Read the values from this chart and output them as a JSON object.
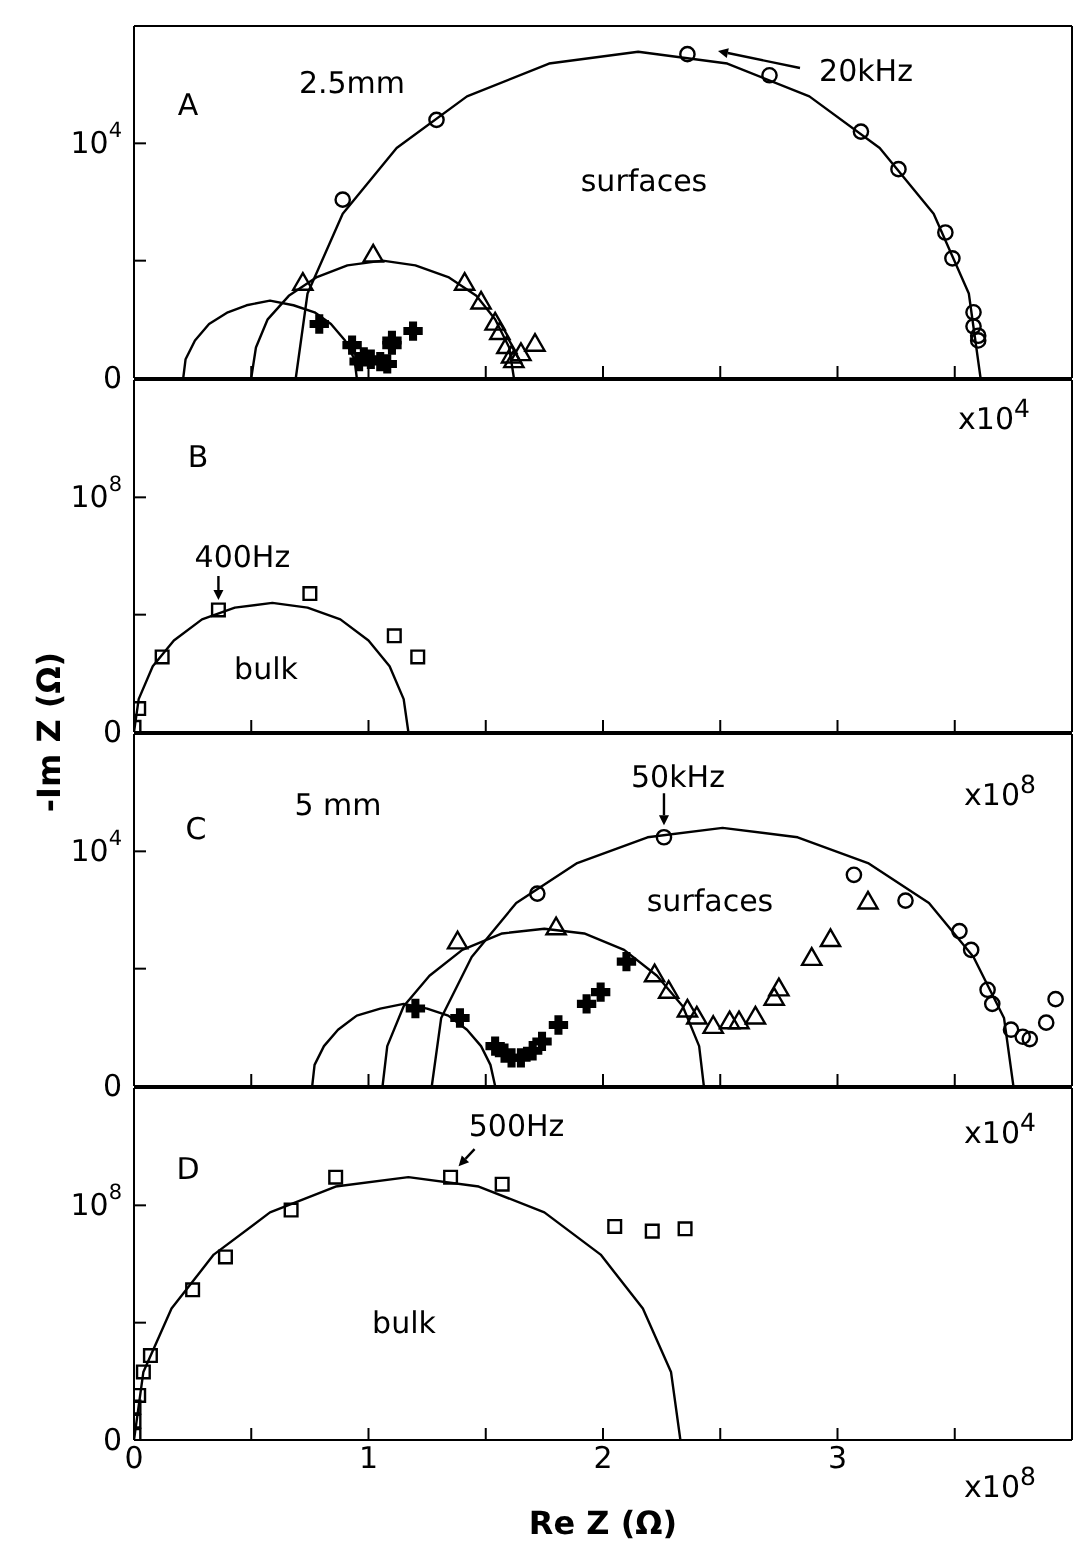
{
  "chart_data": [
    {
      "type": "scatter",
      "tick_labels": "y",
      "xlim": [
        0,
        4
      ],
      "ylim": [
        0,
        15000
      ],
      "xticks": [
        0,
        {
          "value": 0.5,
          "label": null
        },
        {
          "value": 1,
          "label": null
        },
        {
          "value": 1.5,
          "label": null
        },
        {
          "value": 2,
          "label": null
        },
        {
          "value": 2.5,
          "label": null
        },
        {
          "value": 3,
          "label": null
        },
        {
          "value": 3.5,
          "label": null
        }
      ],
      "yticks": [
        {
          "value": 0,
          "label": "0"
        },
        {
          "value": 5000,
          "label": null
        },
        {
          "value": 10000,
          "label": "10$^{4}$"
        }
      ],
      "series": [
        {
          "marker": "circle",
          "color": "#000000",
          "x": [
            0.89,
            1.29,
            2.36,
            2.71,
            3.1,
            3.26,
            3.46,
            3.49,
            3.58,
            3.58,
            3.6,
            3.6
          ],
          "values": [
            7600,
            11000,
            13800,
            12900,
            10500,
            8900,
            6200,
            5100,
            2800,
            2200,
            1800,
            1600
          ]
        },
        {
          "type": "line",
          "color": "#000000",
          "x": [
            3.61,
            3.56,
            3.41,
            3.18,
            2.88,
            2.53,
            2.15,
            1.77,
            1.42,
            1.12,
            0.89,
            0.74,
            0.69
          ],
          "values": [
            0,
            3600,
            7000,
            9800,
            12000,
            13400,
            13900,
            13400,
            12000,
            9800,
            7000,
            3600,
            0
          ]
        },
        {
          "marker": "triangle",
          "color": "#000000",
          "x": [
            0.72,
            1.02,
            1.41,
            1.48,
            1.54,
            1.56,
            1.59,
            1.61,
            1.62,
            1.65,
            1.71
          ],
          "values": [
            4000,
            5200,
            4000,
            3200,
            2300,
            1900,
            1300,
            900,
            700,
            1000,
            1400
          ]
        },
        {
          "type": "line",
          "color": "#000000",
          "x": [
            1.62,
            1.6,
            1.54,
            1.46,
            1.34,
            1.2,
            1.06,
            0.91,
            0.78,
            0.66,
            0.57,
            0.52,
            0.5
          ],
          "values": [
            0,
            1300,
            2500,
            3500,
            4300,
            4800,
            5000,
            4800,
            4300,
            3500,
            2500,
            1300,
            0
          ]
        },
        {
          "marker": "cross",
          "color": "#000000",
          "x": [
            0.79,
            0.93,
            0.96,
            0.98,
            1.01,
            1.05,
            1.08,
            1.1,
            1.1,
            1.19
          ],
          "values": [
            2300,
            1400,
            700,
            900,
            800,
            700,
            600,
            1400,
            1600,
            2000
          ]
        },
        {
          "type": "line",
          "color": "#000000",
          "x": [
            0.95,
            0.94,
            0.9,
            0.84,
            0.77,
            0.68,
            0.58,
            0.48,
            0.4,
            0.32,
            0.26,
            0.22,
            0.21
          ],
          "values": [
            0,
            800,
            1600,
            2300,
            2800,
            3100,
            3300,
            3100,
            2800,
            2300,
            1600,
            800,
            0
          ]
        }
      ],
      "annotations": [
        "A",
        "2.5mm",
        "surfaces",
        "20kHz"
      ]
    },
    {
      "type": "scatter",
      "tick_labels": "y",
      "xlim": [
        0,
        4
      ],
      "ylim": [
        0,
        150000000
      ],
      "ylabel": "-Im Z (Ω)",
      "xticks": [
        0,
        {
          "value": 0.5,
          "label": null
        },
        {
          "value": 1,
          "label": null
        },
        {
          "value": 1.5,
          "label": null
        },
        {
          "value": 2,
          "label": null
        },
        {
          "value": 2.5,
          "label": null
        },
        {
          "value": 3,
          "label": null
        },
        {
          "value": 3.5,
          "label": null
        }
      ],
      "yticks": [
        {
          "value": 0,
          "label": "0"
        },
        {
          "value": 50000000,
          "label": null
        },
        {
          "value": 100000000,
          "label": "10$^{8}$"
        }
      ],
      "series": [
        {
          "marker": "square",
          "color": "#000000",
          "x": [
            0,
            0.02,
            0.12,
            0.36,
            0.75,
            1.11,
            1.21
          ],
          "values": [
            2000000,
            10000000,
            32000000,
            52000000,
            59000000,
            41000000,
            32000000
          ]
        },
        {
          "type": "line",
          "color": "#000000",
          "x": [
            1.17,
            1.15,
            1.09,
            1.0,
            0.88,
            0.74,
            0.59,
            0.43,
            0.29,
            0.17,
            0.08,
            0.02,
            0
          ],
          "values": [
            0,
            14000000,
            28000000,
            39000000,
            48000000,
            53000000,
            55000000,
            53000000,
            48000000,
            39000000,
            28000000,
            14000000,
            0
          ]
        }
      ],
      "annotations": [
        "B",
        "bulk",
        "x10$^{4}$",
        {
          "text": "400Hz",
          "x": 0.36,
          "y": 52000000
        }
      ]
    },
    {
      "type": "scatter",
      "tick_labels": "y",
      "xlim": [
        0,
        4
      ],
      "ylim": [
        0,
        15000
      ],
      "xticks": [
        0,
        {
          "value": 0.5,
          "label": null
        },
        {
          "value": 1,
          "label": null
        },
        {
          "value": 1.5,
          "label": null
        },
        {
          "value": 2,
          "label": null
        },
        {
          "value": 2.5,
          "label": null
        },
        {
          "value": 3,
          "label": null
        },
        {
          "value": 3.5,
          "label": null
        }
      ],
      "yticks": [
        {
          "value": 0,
          "label": "0"
        },
        {
          "value": 5000,
          "label": null
        },
        {
          "value": 10000,
          "label": "10$^{4}$"
        }
      ],
      "series": [
        {
          "marker": "circle",
          "color": "#000000",
          "x": [
            1.72,
            2.26,
            3.07,
            3.29,
            3.52,
            3.57,
            3.64,
            3.66,
            3.74,
            3.79,
            3.82,
            3.89,
            3.93
          ],
          "values": [
            8200,
            10600,
            9000,
            7900,
            6600,
            5800,
            4100,
            3500,
            2400,
            2100,
            2000,
            2700,
            3700
          ]
        },
        {
          "type": "line",
          "color": "#000000",
          "x": [
            3.75,
            3.71,
            3.58,
            3.39,
            3.13,
            2.83,
            2.51,
            2.19,
            1.89,
            1.63,
            1.44,
            1.31,
            1.27
          ],
          "values": [
            0,
            2900,
            5500,
            7800,
            9500,
            10600,
            11000,
            10600,
            9500,
            7800,
            5500,
            2900,
            0
          ]
        },
        {
          "marker": "triangle",
          "color": "#000000",
          "x": [
            1.38,
            1.8,
            2.22,
            2.28,
            2.36,
            2.4,
            2.47,
            2.54,
            2.58,
            2.65,
            2.73,
            2.75,
            2.89,
            2.97,
            3.13
          ],
          "values": [
            6100,
            6700,
            4700,
            4000,
            3200,
            2900,
            2500,
            2700,
            2700,
            2900,
            3700,
            4100,
            5400,
            6200,
            7800
          ]
        },
        {
          "type": "line",
          "color": "#000000",
          "x": [
            2.43,
            2.41,
            2.34,
            2.23,
            2.09,
            1.92,
            1.75,
            1.57,
            1.4,
            1.26,
            1.15,
            1.08,
            1.06
          ],
          "values": [
            0,
            1700,
            3400,
            4700,
            5800,
            6500,
            6700,
            6500,
            5800,
            4700,
            3400,
            1700,
            0
          ]
        },
        {
          "marker": "cross",
          "color": "#000000",
          "x": [
            1.2,
            1.39,
            1.54,
            1.58,
            1.61,
            1.65,
            1.7,
            1.74,
            1.81,
            1.93,
            1.99,
            2.1
          ],
          "values": [
            3300,
            2900,
            1700,
            1400,
            1200,
            1200,
            1500,
            1900,
            2600,
            3500,
            4000,
            5300
          ]
        },
        {
          "type": "line",
          "color": "#000000",
          "x": [
            1.54,
            1.52,
            1.48,
            1.42,
            1.34,
            1.25,
            1.15,
            1.05,
            0.95,
            0.87,
            0.81,
            0.77,
            0.76
          ],
          "values": [
            0,
            900,
            1700,
            2400,
            3000,
            3300,
            3500,
            3300,
            3000,
            2400,
            1700,
            900,
            0
          ]
        }
      ],
      "annotations": [
        "C",
        "5 mm",
        "surfaces",
        "x10$^{8}$",
        {
          "text": "50kHz",
          "x": 2.26,
          "y": 10600
        }
      ]
    },
    {
      "type": "scatter",
      "xlim": [
        0,
        4
      ],
      "ylim": [
        0,
        150000000
      ],
      "xlabel": "Re Z (Ω)",
      "xticks": [
        0,
        {
          "value": 0.5,
          "label": null
        },
        1,
        {
          "value": 1.5,
          "label": null
        },
        2,
        {
          "value": 2.5,
          "label": null
        },
        3,
        {
          "value": 3.5,
          "label": null
        }
      ],
      "yticks": [
        {
          "value": 0,
          "label": "0"
        },
        {
          "value": 50000000,
          "label": null
        },
        {
          "value": 100000000,
          "label": "10$^{8}$"
        }
      ],
      "series": [
        {
          "marker": "square",
          "color": "#000000",
          "x": [
            0,
            0,
            0,
            0.02,
            0.04,
            0.07,
            0.25,
            0.39,
            0.67,
            0.86,
            1.35,
            1.57,
            2.05,
            2.21,
            2.35
          ],
          "values": [
            2000000,
            8000000,
            14000000,
            19000000,
            29000000,
            36000000,
            64000000,
            78000000,
            98000000,
            112000000,
            112000000,
            109000000,
            91000000,
            89000000,
            90000000
          ]
        },
        {
          "type": "line",
          "color": "#000000",
          "x": [
            2.33,
            2.29,
            2.17,
            1.99,
            1.75,
            1.47,
            1.17,
            0.86,
            0.58,
            0.34,
            0.16,
            0.04,
            0
          ],
          "values": [
            0,
            29000000,
            56000000,
            79000000,
            97000000,
            108000000,
            112000000,
            108000000,
            97000000,
            79000000,
            56000000,
            29000000,
            0
          ]
        }
      ],
      "annotations": [
        "D",
        "bulk",
        "x10$^{4}$",
        "x10$^{8}$",
        {
          "text": "500Hz",
          "x": 1.35,
          "y": 112000000
        }
      ]
    }
  ]
}
